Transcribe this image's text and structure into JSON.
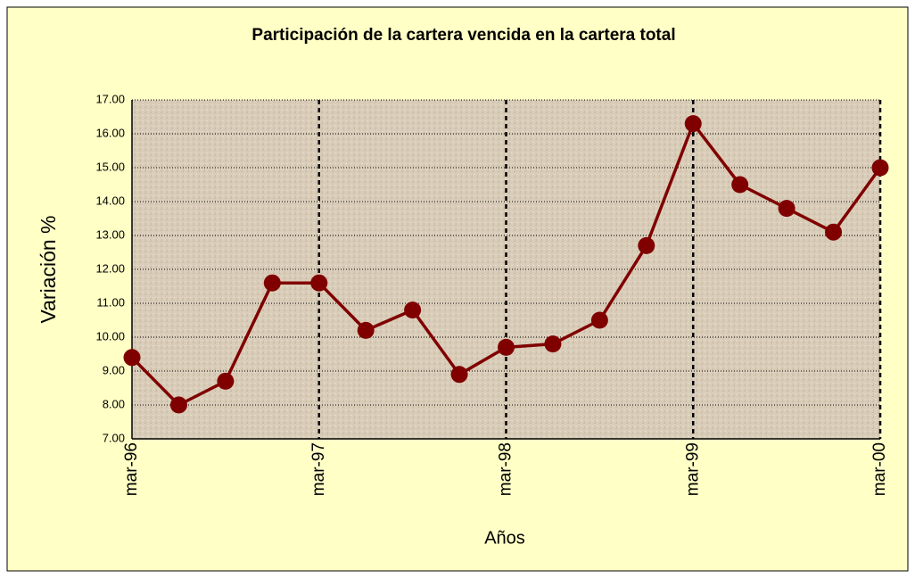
{
  "chart_data": {
    "type": "line",
    "title": "Participación de la cartera vencida en la cartera total",
    "x_label": "Años",
    "y_label": "Variación %",
    "categories": [
      "mar-96",
      null,
      null,
      null,
      "mar-97",
      null,
      null,
      null,
      "mar-98",
      null,
      null,
      null,
      "mar-99",
      null,
      null,
      null,
      "mar-00"
    ],
    "series": [
      {
        "name": "Participación",
        "color": "#800000",
        "values": [
          9.4,
          8.0,
          8.7,
          11.6,
          11.6,
          10.2,
          10.8,
          8.9,
          9.7,
          9.8,
          10.5,
          12.7,
          16.3,
          14.5,
          13.8,
          13.1,
          15.0
        ]
      }
    ],
    "ylim": [
      7,
      17
    ],
    "yticks": [
      {
        "value": 7,
        "label": "7.00"
      },
      {
        "value": 8,
        "label": "8.00"
      },
      {
        "value": 9,
        "label": "9.00"
      },
      {
        "value": 10,
        "label": "10.00"
      },
      {
        "value": 11,
        "label": "11.00"
      },
      {
        "value": 12,
        "label": "12.00"
      },
      {
        "value": 13,
        "label": "13.00"
      },
      {
        "value": 14,
        "label": "14.00"
      },
      {
        "value": 15,
        "label": "15.00"
      },
      {
        "value": 16,
        "label": "16.00"
      },
      {
        "value": 17,
        "label": "17.00"
      }
    ],
    "grid": true
  }
}
